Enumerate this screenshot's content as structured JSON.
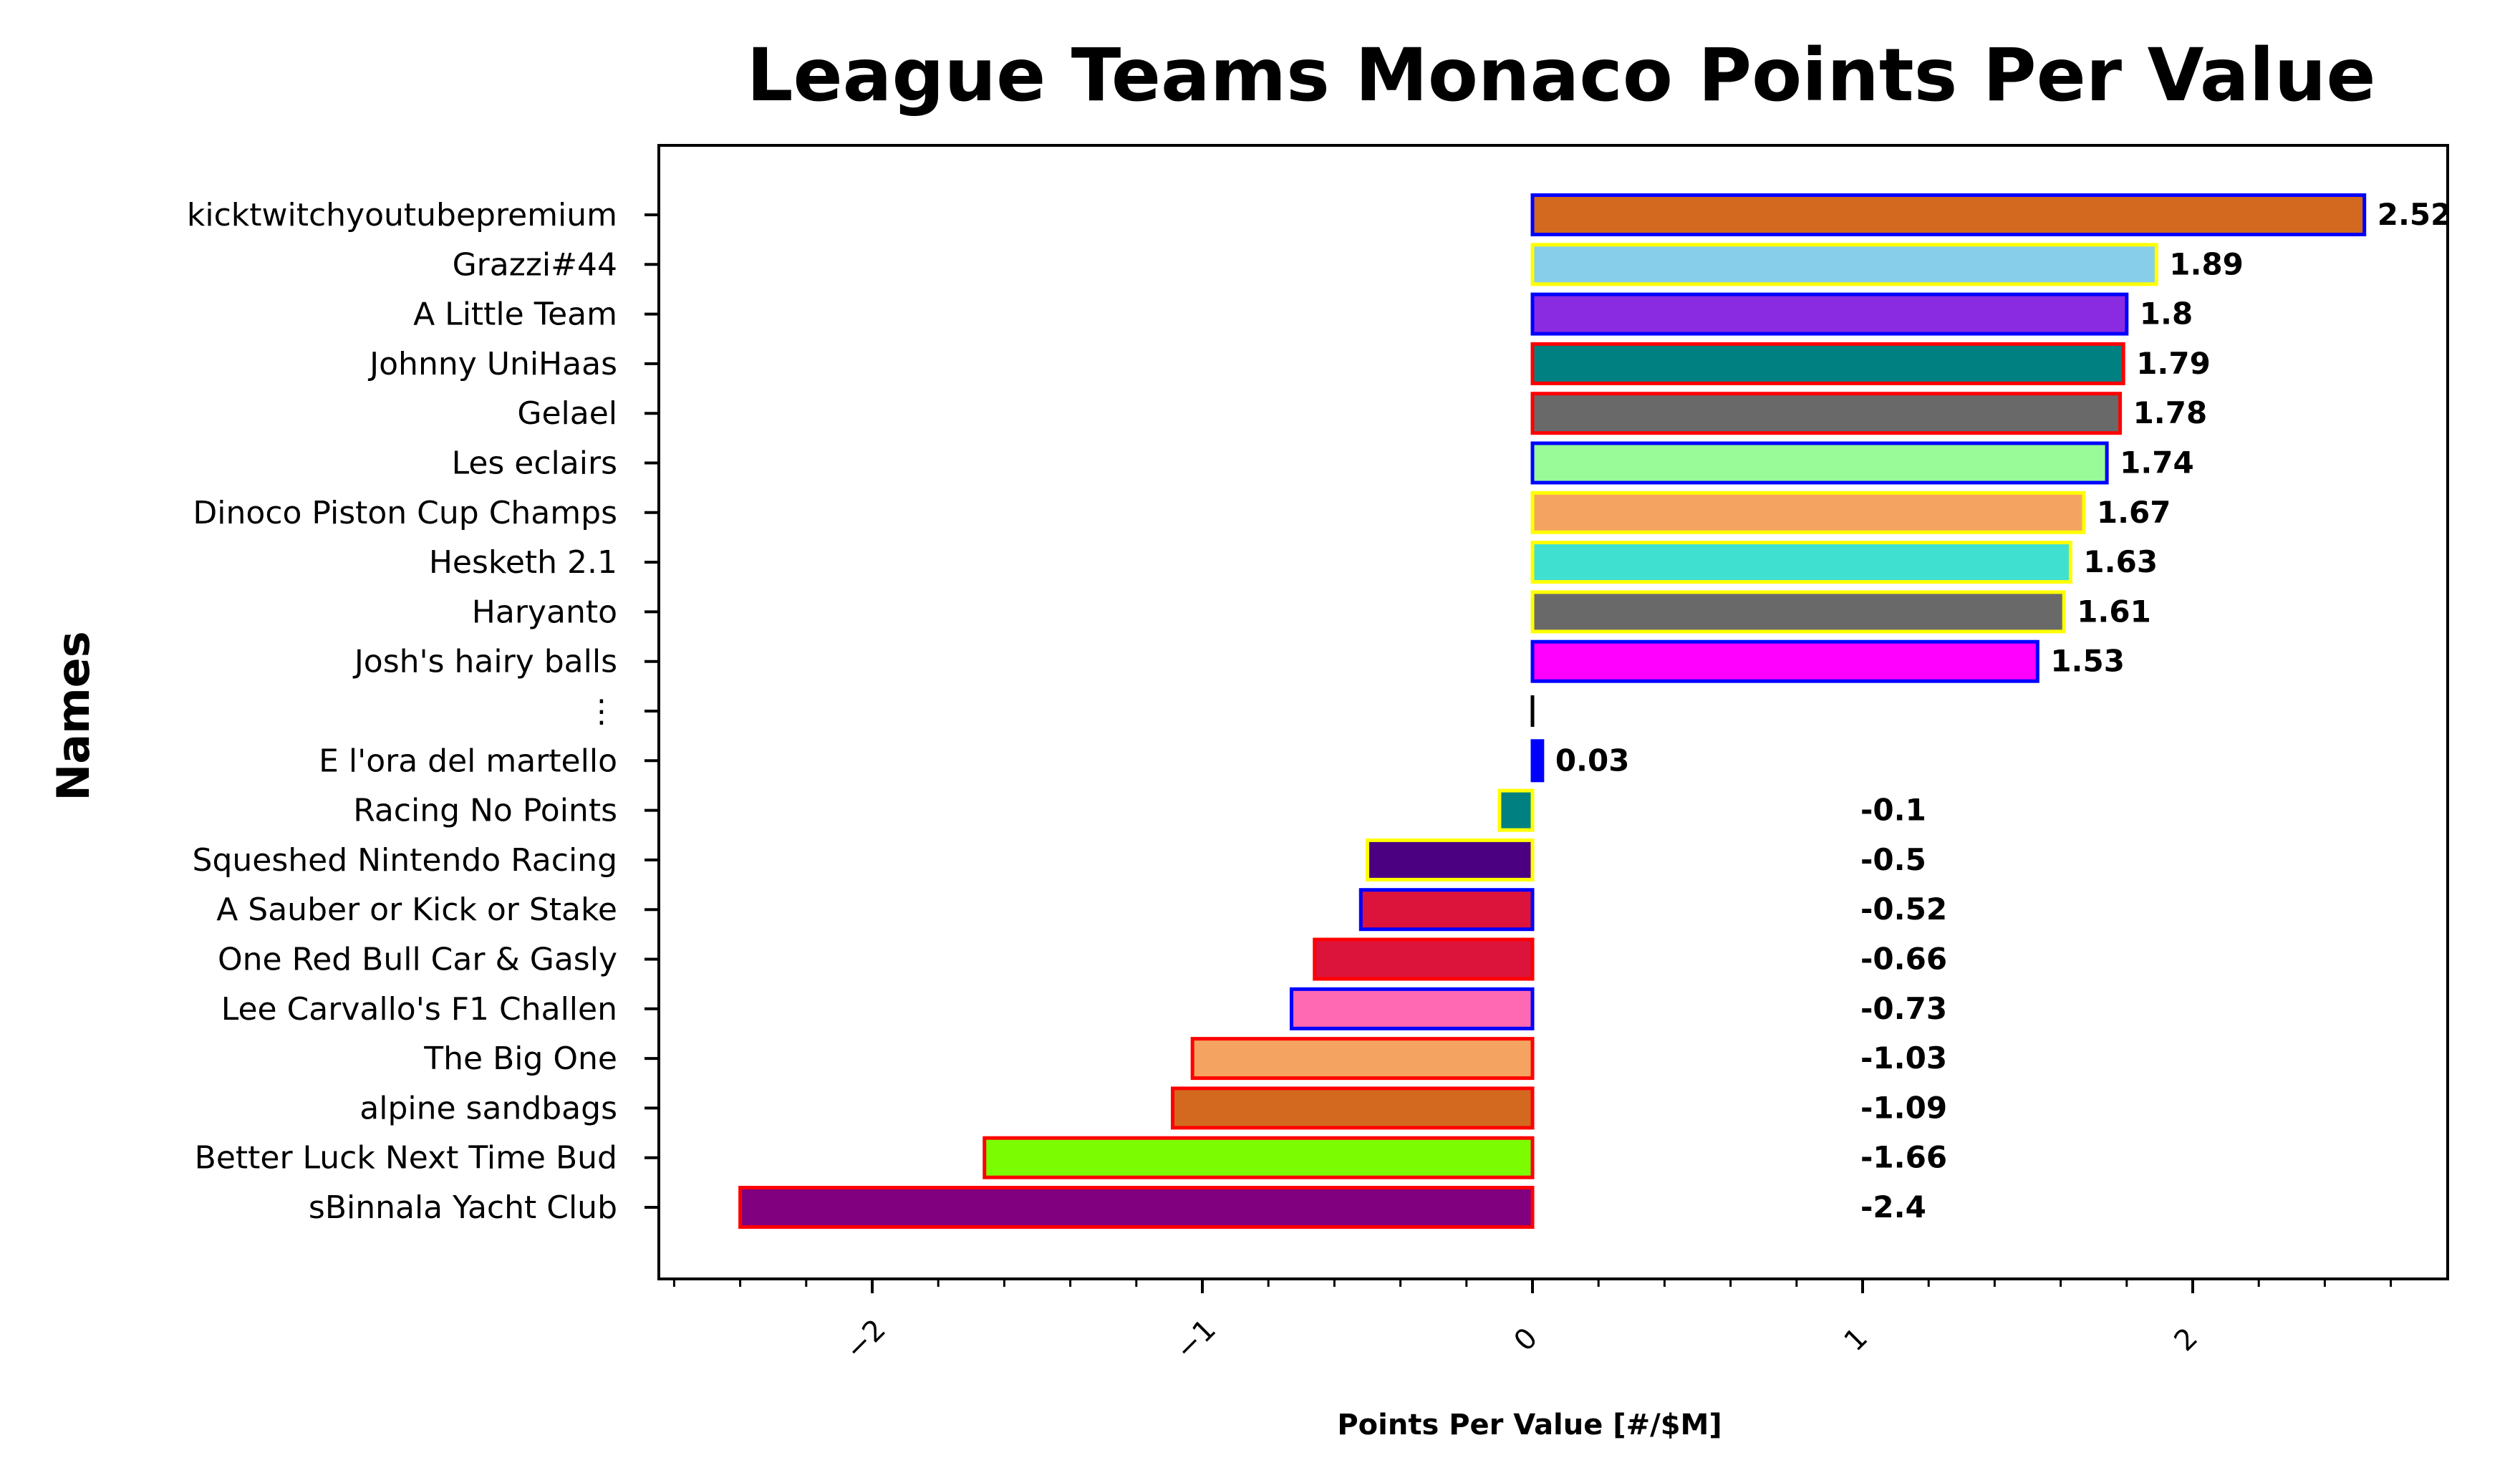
{
  "chart_data": {
    "type": "bar",
    "orientation": "horizontal",
    "title": "League Teams Monaco Points Per Value",
    "xlabel": "Points Per Value [#/$M]",
    "ylabel": "Names",
    "xlim": [
      -2.65,
      2.78
    ],
    "xticks": [
      -2,
      -1,
      0,
      1,
      2
    ],
    "xtick_labels": [
      "−2",
      "−1",
      "0",
      "1",
      "2"
    ],
    "grid": false,
    "legend": "none",
    "categories": [
      "kicktwitchyoutubepremium",
      "Grazzi#44",
      "A Little Team",
      "Johnny UniHaas",
      "Gelael",
      "Les eclairs",
      "Dinoco Piston Cup Champs",
      "Hesketh 2.1",
      "Haryanto",
      "Josh's hairy balls",
      "⋮",
      "E l'ora del martello",
      "Racing No Points",
      "Squeshed Nintendo Racing",
      "A Sauber or Kick or Stake",
      "One Red Bull Car & Gasly",
      "Lee Carvallo's F1 Challen",
      "The Big One",
      "alpine sandbags",
      "Better Luck Next Time Bud",
      "sBinnala Yacht Club"
    ],
    "values": [
      2.52,
      1.89,
      1.8,
      1.79,
      1.78,
      1.74,
      1.67,
      1.63,
      1.61,
      1.53,
      0,
      0.03,
      -0.1,
      -0.5,
      -0.52,
      -0.66,
      -0.73,
      -1.03,
      -1.09,
      -1.66,
      -2.4
    ],
    "value_labels": [
      "2.52",
      "1.89",
      "1.8",
      "1.79",
      "1.78",
      "1.74",
      "1.67",
      "1.63",
      "1.61",
      "1.53",
      "",
      "0.03",
      "-0.1",
      "-0.5",
      "-0.52",
      "-0.66",
      "-0.73",
      "-1.03",
      "-1.09",
      "-1.66",
      "-2.4"
    ],
    "fill_colors": [
      "#d2691e",
      "#87ceeb",
      "#8a2be2",
      "#008080",
      "#696969",
      "#98fb98",
      "#f4a460",
      "#40e0d0",
      "#696969",
      "#ff00ff",
      "#000000",
      "#0000ff",
      "#008080",
      "#4b0082",
      "#dc143c",
      "#dc143c",
      "#ff69b4",
      "#f4a460",
      "#d2691e",
      "#7cfc00",
      "#800080"
    ],
    "edge_colors": [
      "#0000ff",
      "#ffff00",
      "#0000ff",
      "#ff0000",
      "#ff0000",
      "#0000ff",
      "#ffff00",
      "#ffff00",
      "#ffff00",
      "#0000ff",
      "#000000",
      "#0000ff",
      "#ffff00",
      "#ffff00",
      "#0000ff",
      "#ff0000",
      "#0000ff",
      "#ff0000",
      "#ff0000",
      "#ff0000",
      "#ff0000"
    ]
  }
}
